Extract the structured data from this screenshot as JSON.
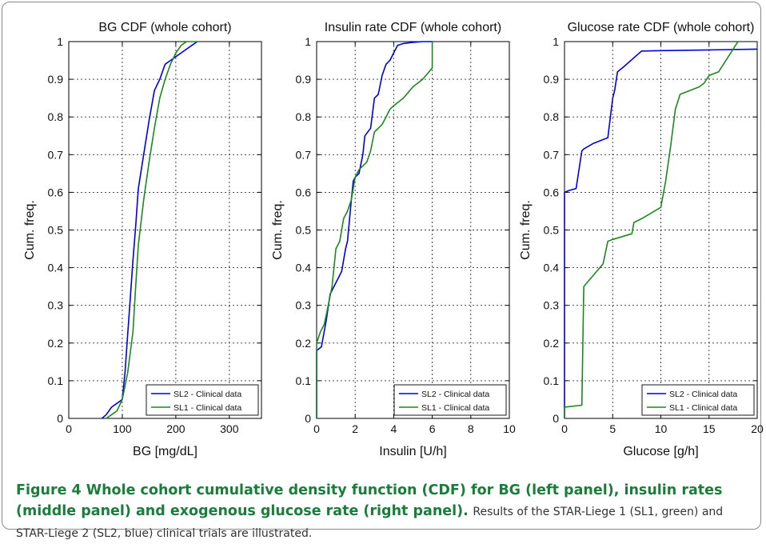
{
  "caption": {
    "title": "Figure 4 Whole cohort cumulative density function (CDF) for BG (left panel), insulin rates (middle panel) and exogenous glucose rate (right panel).",
    "body": "Results of the STAR-Liege 1 (SL1, green) and STAR-Liege 2 (SL2, blue) clinical trials are illustrated."
  },
  "chart_data": [
    {
      "type": "line",
      "title": "BG CDF (whole cohort)",
      "xlabel": "BG [mg/dL]",
      "ylabel": "Cum. freq.",
      "xlim": [
        0,
        360
      ],
      "ylim": [
        0,
        1
      ],
      "xticks": [
        0,
        100,
        200,
        300
      ],
      "yticks": [
        0,
        0.1,
        0.2,
        0.3,
        0.4,
        0.5,
        0.6,
        0.7,
        0.8,
        0.9,
        1
      ],
      "grid": true,
      "legend_position": "bottom-right",
      "series": [
        {
          "name": "SL2 - Clinical data",
          "color": "#0000dd",
          "x": [
            62,
            70,
            80,
            90,
            100,
            105,
            110,
            115,
            120,
            125,
            130,
            140,
            150,
            160,
            170,
            180,
            190,
            200,
            210,
            220,
            230,
            240
          ],
          "y": [
            0,
            0.01,
            0.03,
            0.04,
            0.05,
            0.12,
            0.22,
            0.32,
            0.42,
            0.51,
            0.61,
            0.7,
            0.79,
            0.87,
            0.9,
            0.94,
            0.95,
            0.96,
            0.97,
            0.98,
            0.99,
            1.0
          ]
        },
        {
          "name": "SL1 - Clinical data",
          "color": "#1a8a1a",
          "x": [
            70,
            80,
            90,
            100,
            110,
            120,
            125,
            130,
            140,
            150,
            160,
            170,
            180,
            190,
            200,
            210,
            220,
            240
          ],
          "y": [
            0,
            0.01,
            0.02,
            0.05,
            0.12,
            0.23,
            0.35,
            0.46,
            0.58,
            0.68,
            0.77,
            0.85,
            0.9,
            0.94,
            0.97,
            0.99,
            1.0,
            1.0
          ]
        }
      ]
    },
    {
      "type": "line",
      "title": "Insulin rate CDF (whole cohort)",
      "xlabel": "Insulin [U/h]",
      "ylabel": "Cum. freq.",
      "xlim": [
        0,
        10
      ],
      "ylim": [
        0,
        1
      ],
      "xticks": [
        0,
        2,
        4,
        6,
        8,
        10
      ],
      "yticks": [
        0,
        0.1,
        0.2,
        0.3,
        0.4,
        0.5,
        0.6,
        0.7,
        0.8,
        0.9,
        1
      ],
      "grid": true,
      "legend_position": "bottom-right",
      "series": [
        {
          "name": "SL2 - Clinical data",
          "color": "#0000dd",
          "x": [
            0,
            0,
            0.25,
            0.5,
            0.7,
            0.9,
            1.1,
            1.3,
            1.5,
            1.6,
            1.8,
            1.9,
            2.0,
            2.2,
            2.4,
            2.5,
            2.8,
            3.0,
            3.2,
            3.4,
            3.6,
            3.8,
            4.0,
            4.2,
            4.5,
            5.0,
            5.5,
            6.0
          ],
          "y": [
            0,
            0.18,
            0.19,
            0.26,
            0.33,
            0.35,
            0.37,
            0.39,
            0.45,
            0.47,
            0.58,
            0.63,
            0.64,
            0.65,
            0.7,
            0.75,
            0.77,
            0.85,
            0.86,
            0.91,
            0.94,
            0.95,
            0.97,
            0.99,
            0.995,
            0.998,
            1.0,
            1.0
          ]
        },
        {
          "name": "SL1 - Clinical data",
          "color": "#1a8a1a",
          "x": [
            0,
            0,
            0.2,
            0.4,
            0.6,
            0.8,
            1.0,
            1.2,
            1.4,
            1.6,
            1.8,
            2.0,
            2.2,
            2.4,
            2.6,
            2.8,
            3.0,
            3.4,
            3.6,
            3.8,
            4.0,
            4.5,
            5.0,
            5.5,
            6.0,
            6.0
          ],
          "y": [
            0,
            0.2,
            0.23,
            0.25,
            0.3,
            0.35,
            0.45,
            0.47,
            0.53,
            0.55,
            0.58,
            0.64,
            0.66,
            0.67,
            0.68,
            0.71,
            0.76,
            0.78,
            0.8,
            0.82,
            0.83,
            0.85,
            0.88,
            0.9,
            0.93,
            1.0
          ]
        }
      ]
    },
    {
      "type": "line",
      "title": "Glucose rate CDF (whole cohort)",
      "xlabel": "Glucose [g/h]",
      "ylabel": "Cum. freq.",
      "xlim": [
        0,
        20
      ],
      "ylim": [
        0,
        1
      ],
      "xticks": [
        0,
        5,
        10,
        15,
        20
      ],
      "yticks": [
        0,
        0.1,
        0.2,
        0.3,
        0.4,
        0.5,
        0.6,
        0.7,
        0.8,
        0.9,
        1
      ],
      "grid": true,
      "legend_position": "bottom-right",
      "series": [
        {
          "name": "SL2 - Clinical data",
          "color": "#0000dd",
          "x": [
            0,
            0,
            0.5,
            1.2,
            1.8,
            2.0,
            3.0,
            4.0,
            4.5,
            5.0,
            5.2,
            5.5,
            6.0,
            8.0,
            10.0,
            15.0,
            20.0
          ],
          "y": [
            0,
            0.6,
            0.605,
            0.61,
            0.71,
            0.715,
            0.73,
            0.74,
            0.745,
            0.85,
            0.87,
            0.92,
            0.93,
            0.975,
            0.976,
            0.978,
            0.98
          ]
        },
        {
          "name": "SL1 - Clinical data",
          "color": "#1a8a1a",
          "x": [
            0,
            0,
            1.8,
            2.0,
            3.0,
            4.0,
            4.5,
            5.0,
            7.0,
            7.2,
            8.0,
            10.0,
            10.5,
            11.0,
            11.5,
            12.0,
            13.0,
            14.0,
            14.5,
            15.0,
            16.0,
            17.0,
            17.5,
            18.0
          ],
          "y": [
            0,
            0.03,
            0.035,
            0.35,
            0.38,
            0.41,
            0.47,
            0.475,
            0.49,
            0.52,
            0.53,
            0.56,
            0.63,
            0.72,
            0.82,
            0.86,
            0.87,
            0.88,
            0.89,
            0.91,
            0.92,
            0.96,
            0.98,
            1.0
          ]
        }
      ]
    }
  ]
}
